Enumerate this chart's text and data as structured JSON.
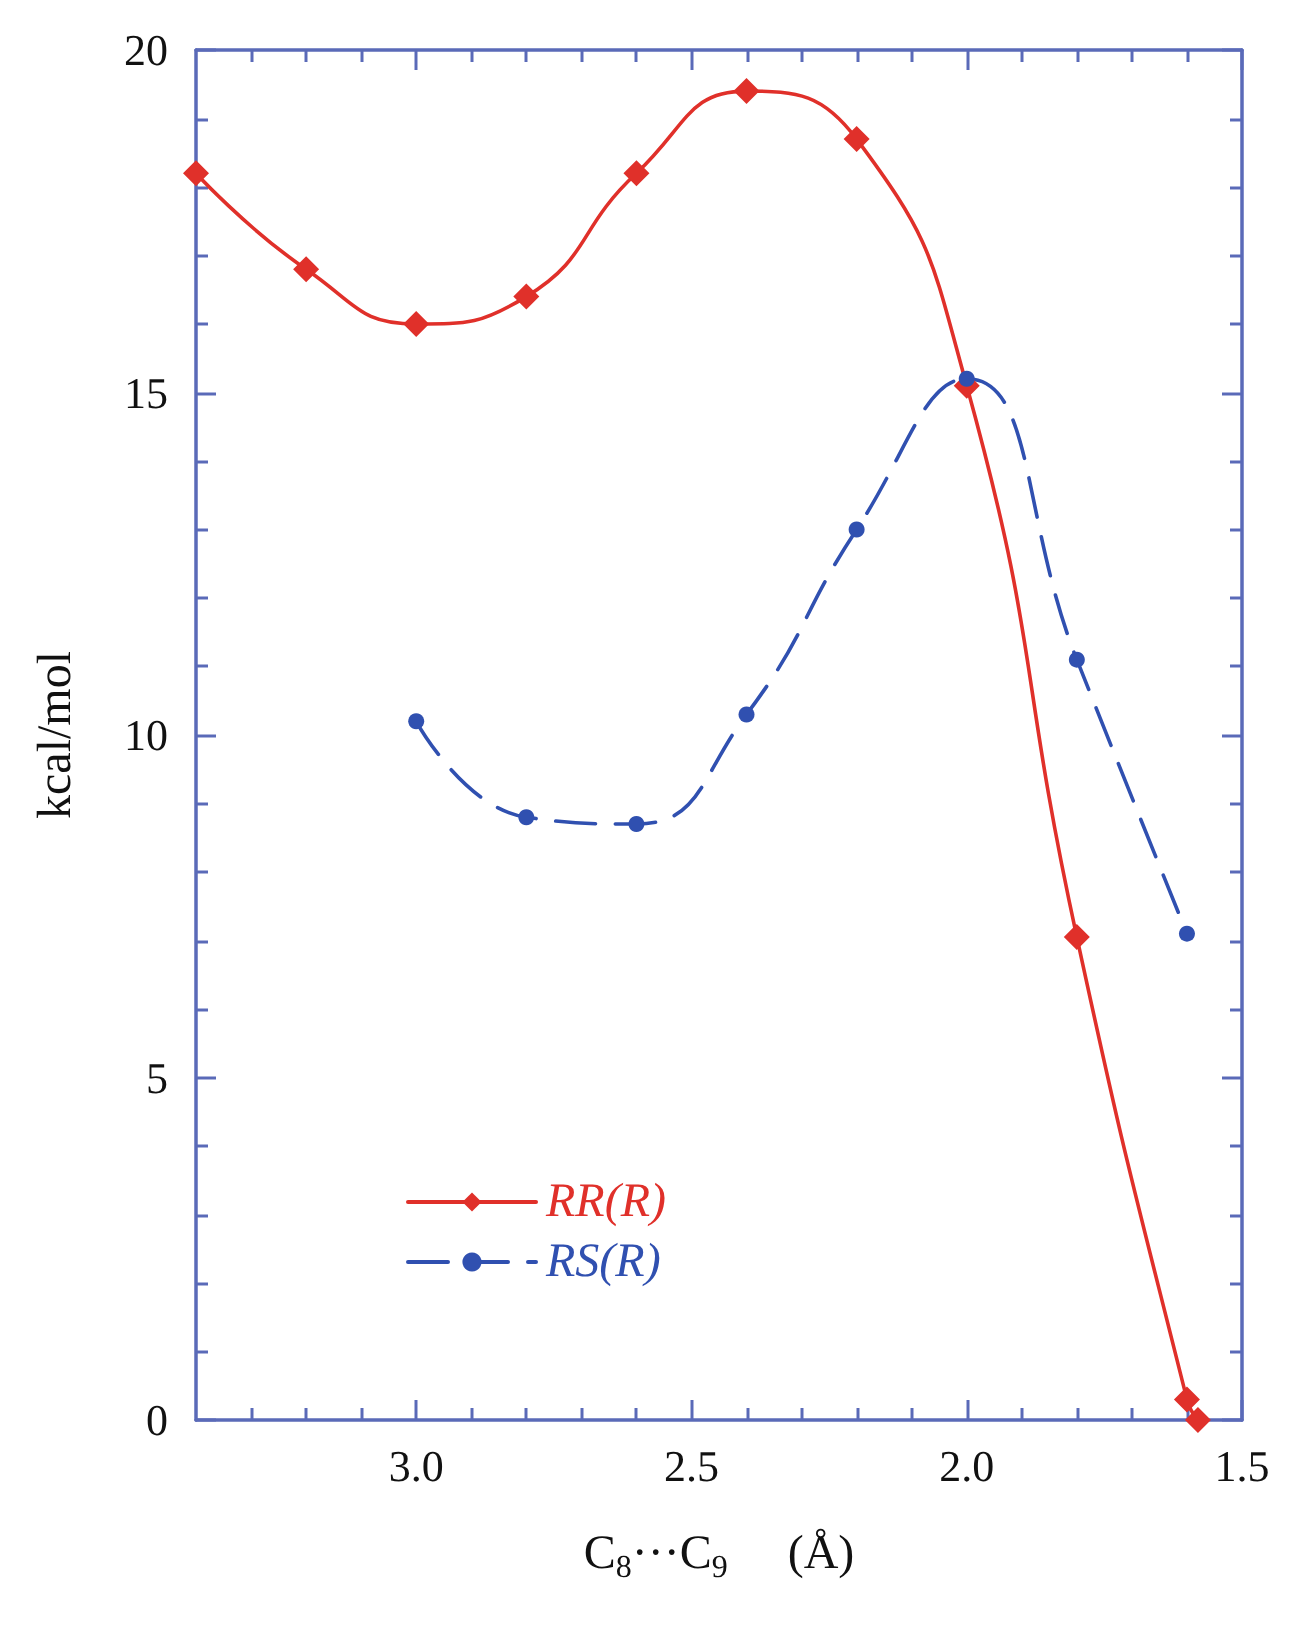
{
  "chart_data": {
    "type": "line",
    "xlabel": "C$_{8}$···C$_{9}$     (Å)",
    "ylabel": "kcal/mol",
    "xlim": [
      3.4,
      1.5
    ],
    "ylim": [
      0,
      20
    ],
    "xticks": [
      {
        "value": 3.3,
        "label": null
      },
      {
        "value": 3.2,
        "label": null
      },
      {
        "value": 3.1,
        "label": null
      },
      {
        "value": 3,
        "label": "3.0"
      },
      {
        "value": 2.9,
        "label": null
      },
      {
        "value": 2.8,
        "label": null
      },
      {
        "value": 2.7,
        "label": null
      },
      {
        "value": 2.6,
        "label": null
      },
      2.5,
      {
        "value": 2.4,
        "label": null
      },
      {
        "value": 2.3,
        "label": null
      },
      {
        "value": 2.2,
        "label": null
      },
      {
        "value": 2.1,
        "label": null
      },
      {
        "value": 2,
        "label": "2.0"
      },
      {
        "value": 1.9,
        "label": null
      },
      {
        "value": 1.8,
        "label": null
      },
      {
        "value": 1.7,
        "label": null
      },
      {
        "value": 1.6,
        "label": null
      },
      1.5
    ],
    "yticks": [
      0,
      {
        "value": 1,
        "label": null
      },
      {
        "value": 2,
        "label": null
      },
      {
        "value": 3,
        "label": null
      },
      {
        "value": 4,
        "label": null
      },
      5,
      {
        "value": 6,
        "label": null
      },
      {
        "value": 7,
        "label": null
      },
      {
        "value": 8,
        "label": null
      },
      {
        "value": 9,
        "label": null
      },
      10,
      {
        "value": 11,
        "label": null
      },
      {
        "value": 12,
        "label": null
      },
      {
        "value": 13,
        "label": null
      },
      {
        "value": 14,
        "label": null
      },
      15,
      {
        "value": 16,
        "label": null
      },
      {
        "value": 17,
        "label": null
      },
      {
        "value": 18,
        "label": null
      },
      {
        "value": 19,
        "label": null
      },
      20
    ],
    "grid": false,
    "legend": "bottom left",
    "series": [
      {
        "name": "RR(R)",
        "color": "#e0302a",
        "marker": "diamond",
        "line_style": "solid",
        "x": [
          3.4,
          3.2,
          3.0,
          2.8,
          2.6,
          2.4,
          2.2,
          2.0,
          1.8,
          1.6,
          1.58
        ],
        "values": [
          18.2,
          16.8,
          16.0,
          16.4,
          18.2,
          19.4,
          18.7,
          15.1,
          7.05,
          0.3,
          0.0
        ]
      },
      {
        "name": "RS(R)",
        "color": "#3050b0",
        "marker": "circle",
        "line_style": "dashed",
        "x": [
          3.0,
          2.8,
          2.6,
          2.4,
          2.2,
          2.0,
          1.8,
          1.6
        ],
        "values": [
          10.2,
          8.8,
          8.7,
          10.3,
          13.0,
          15.2,
          11.1,
          7.1
        ]
      }
    ]
  }
}
